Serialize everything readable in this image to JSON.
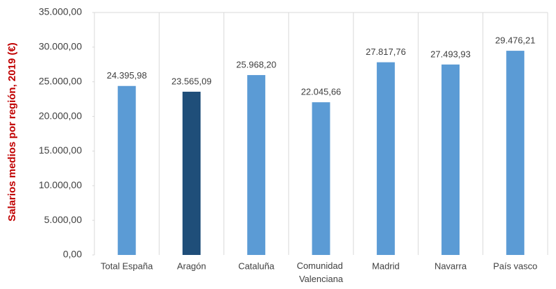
{
  "chart_data": {
    "type": "bar",
    "y_label": "Salarios medios  por región, 2019 (€)",
    "categories": [
      "Total España",
      "Aragón",
      "Cataluña",
      "Comunidad Valenciana",
      "Madrid",
      "Navarra",
      "País vasco"
    ],
    "values": [
      24395.98,
      23565.09,
      25968.2,
      22045.66,
      27817.76,
      27493.93,
      29476.21
    ],
    "value_labels": [
      "24.395,98",
      "23.565,09",
      "25.968,20",
      "22.045,66",
      "27.817,76",
      "27.493,93",
      "29.476,21"
    ],
    "colors": [
      "#5b9bd5",
      "#1f4e79",
      "#5b9bd5",
      "#5b9bd5",
      "#5b9bd5",
      "#5b9bd5",
      "#5b9bd5"
    ],
    "ylim": [
      0,
      35000
    ],
    "yticks": [
      {
        "value": 0,
        "label": "0,00"
      },
      {
        "value": 5000,
        "label": "5.000,00"
      },
      {
        "value": 10000,
        "label": "10.000,00"
      },
      {
        "value": 15000,
        "label": "15.000,00"
      },
      {
        "value": 20000,
        "label": "20.000,00"
      },
      {
        "value": 25000,
        "label": "25.000,00"
      },
      {
        "value": 30000,
        "label": "30.000,00"
      },
      {
        "value": 35000,
        "label": "35.000,00"
      }
    ]
  }
}
